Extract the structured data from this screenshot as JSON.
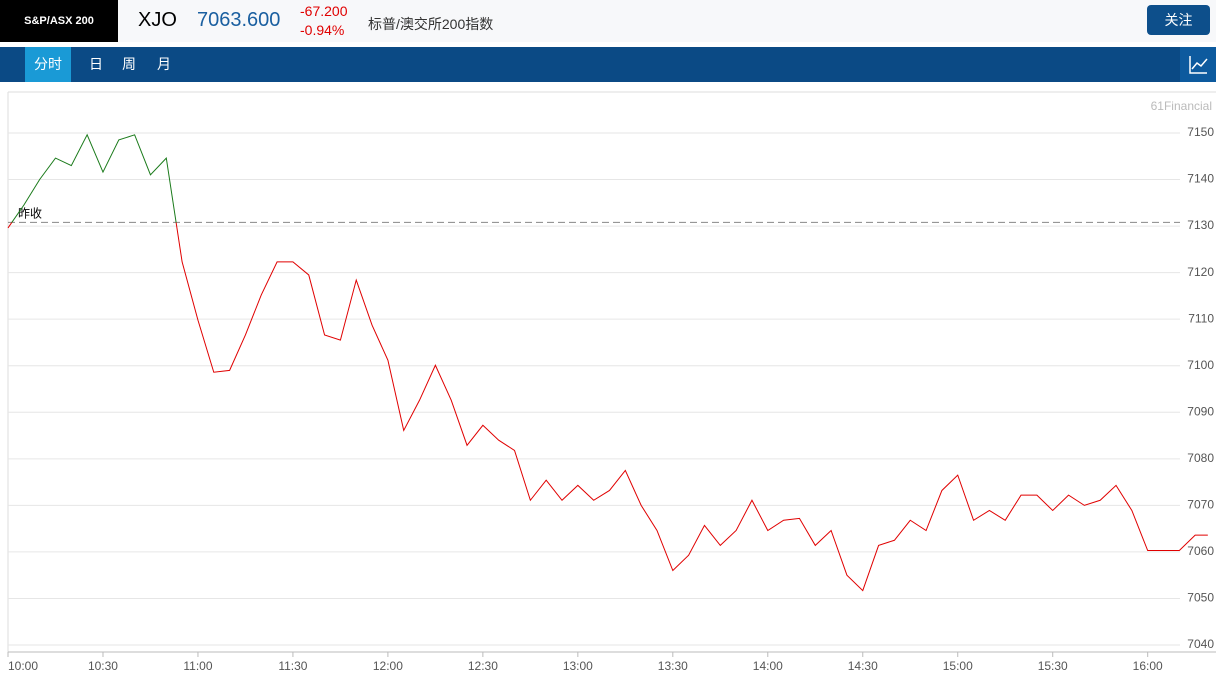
{
  "header": {
    "badge": "S&P/ASX 200",
    "symbol": "XJO",
    "price": "7063.600",
    "change": "-67.200",
    "change_pct": "-0.94%",
    "name": "标普/澳交所200指数",
    "follow": "关注"
  },
  "tabs": [
    "分时",
    "日",
    "周",
    "月"
  ],
  "active_tab": 0,
  "chart_data": {
    "type": "line",
    "watermark": "61Financial",
    "reference": {
      "label": "昨收",
      "value": 7130.8
    },
    "x": [
      "10:00",
      "10:05",
      "10:10",
      "10:15",
      "10:20",
      "10:25",
      "10:30",
      "10:35",
      "10:40",
      "10:45",
      "10:50",
      "10:55",
      "11:00",
      "11:05",
      "11:10",
      "11:15",
      "11:20",
      "11:25",
      "11:30",
      "11:35",
      "11:40",
      "11:45",
      "11:50",
      "11:55",
      "12:00",
      "12:05",
      "12:10",
      "12:15",
      "12:20",
      "12:25",
      "12:30",
      "12:35",
      "12:40",
      "12:45",
      "12:50",
      "12:55",
      "13:00",
      "13:05",
      "13:10",
      "13:15",
      "13:20",
      "13:25",
      "13:30",
      "13:35",
      "13:40",
      "13:45",
      "13:50",
      "13:55",
      "14:00",
      "14:05",
      "14:10",
      "14:15",
      "14:20",
      "14:25",
      "14:30",
      "14:35",
      "14:40",
      "14:45",
      "14:50",
      "14:55",
      "15:00",
      "15:05",
      "15:10",
      "15:15",
      "15:20",
      "15:25",
      "15:30",
      "15:35",
      "15:40",
      "15:45",
      "15:50",
      "15:55",
      "16:00",
      "16:05",
      "16:10",
      "16:15",
      "16:19"
    ],
    "series": [
      {
        "up_color": "#1a7a1a",
        "down_color": "#e00000",
        "values": [
          7129.6,
          7134.5,
          7140,
          7144.6,
          7143,
          7149.6,
          7141.6,
          7148.5,
          7149.6,
          7141,
          7144.6,
          7122.3,
          7109.8,
          7098.6,
          7099,
          7106.6,
          7115.2,
          7122.3,
          7122.3,
          7119.5,
          7106.6,
          7105.5,
          7118.4,
          7108.7,
          7101.2,
          7086.1,
          7092.6,
          7100.1,
          7092.6,
          7082.9,
          7087.2,
          7084,
          7081.8,
          7071.1,
          7075.4,
          7071.1,
          7074.3,
          7071.1,
          7073.2,
          7077.5,
          7070,
          7064.6,
          7056,
          7059.3,
          7065.7,
          7061.4,
          7064.6,
          7071.1,
          7064.6,
          7066.8,
          7067.2,
          7061.4,
          7064.6,
          7055,
          7051.7,
          7061.4,
          7062.5,
          7066.8,
          7064.6,
          7073.2,
          7076.5,
          7066.8,
          7068.9,
          7066.8,
          7072.2,
          7072.2,
          7068.9,
          7072.2,
          7070,
          7071.1,
          7074.3,
          7068.9,
          7060.3,
          7060.3,
          7060.3,
          7063.6,
          7063.6
        ]
      }
    ],
    "xlim": [
      "10:00",
      "16:20"
    ],
    "xticks": [
      "10:00",
      "10:30",
      "11:00",
      "11:30",
      "12:00",
      "12:30",
      "13:00",
      "13:30",
      "14:00",
      "14:30",
      "15:00",
      "15:30",
      "16:00"
    ],
    "ylim": [
      7038.5,
      7158.8
    ],
    "yticks": [
      7040,
      7050,
      7060,
      7070,
      7080,
      7090,
      7100,
      7110,
      7120,
      7130,
      7140,
      7150
    ],
    "grid": true
  }
}
